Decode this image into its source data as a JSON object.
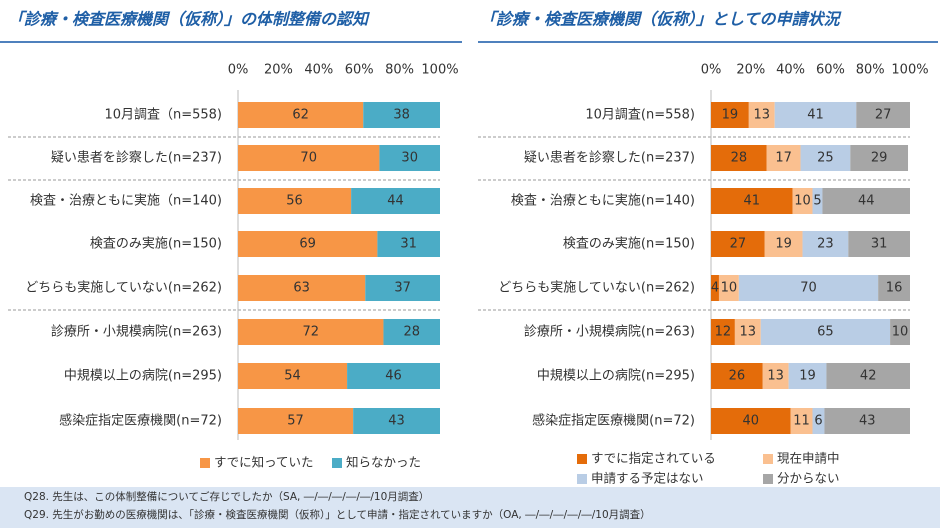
{
  "chart_data": [
    {
      "type": "stacked-bar",
      "title": "「診療・検査医療機関（仮称）」の体制整備の認知",
      "categories": [
        "10月調査（n=558)",
        "疑い患者を診察した(n=237)",
        "検査・治療ともに実施（n=140)",
        "検査のみ実施(n=150)",
        "どちらも実施していない(n=262)",
        "診療所・小規模病院(n=263)",
        "中規模以上の病院(n=295)",
        "感染症指定医療機関(n=72)"
      ],
      "series": [
        {
          "name": "すでに知っていた",
          "color": "#f79646",
          "values": [
            62,
            70,
            56,
            69,
            63,
            72,
            54,
            57
          ]
        },
        {
          "name": "知らなかった",
          "color": "#4bacc6",
          "values": [
            38,
            30,
            44,
            31,
            37,
            28,
            46,
            43
          ]
        }
      ],
      "xlim": [
        0,
        100
      ],
      "xticks": [
        {
          "value": 0,
          "label": "0%"
        },
        {
          "value": 20,
          "label": "20%"
        },
        {
          "value": 40,
          "label": "40%"
        },
        {
          "value": 60,
          "label": "60%"
        },
        {
          "value": 80,
          "label": "80%"
        },
        {
          "value": 100,
          "label": "100%"
        }
      ]
    },
    {
      "type": "stacked-bar",
      "title": "「診療・検査医療機関（仮称）」としての申請状況",
      "categories": [
        "10月調査(n=558)",
        "疑い患者を診察した(n=237)",
        "検査・治療ともに実施(n=140)",
        "検査のみ実施(n=150)",
        "どちらも実施していない(n=262)",
        "診療所・小規模病院(n=263)",
        "中規模以上の病院(n=295)",
        "感染症指定医療機関(n=72)"
      ],
      "series": [
        {
          "name": "すでに指定されている",
          "color": "#e46c0a",
          "values": [
            19,
            28,
            41,
            27,
            4,
            12,
            26,
            40
          ]
        },
        {
          "name": "現在申請中",
          "color": "#fac090",
          "values": [
            13,
            17,
            10,
            19,
            10,
            13,
            13,
            11
          ]
        },
        {
          "name": "申請する予定はない",
          "color": "#b9cde5",
          "values": [
            41,
            25,
            5,
            23,
            70,
            65,
            19,
            6
          ]
        },
        {
          "name": "分からない",
          "color": "#a6a6a6",
          "values": [
            27,
            29,
            44,
            31,
            16,
            10,
            42,
            43
          ]
        }
      ],
      "xlim": [
        0,
        100
      ],
      "xticks": [
        {
          "value": 0,
          "label": "0%"
        },
        {
          "value": 20,
          "label": "20%"
        },
        {
          "value": 40,
          "label": "40%"
        },
        {
          "value": 60,
          "label": "60%"
        },
        {
          "value": 80,
          "label": "80%"
        },
        {
          "value": 100,
          "label": "100%"
        }
      ]
    }
  ],
  "notes": [
    "Q28.  先生は、この体制整備についてご存じでしたか（SA, ―/―/―/―/―/10月調査）",
    "Q29.  先生がお勤めの医療機関は、「診療・検査医療機関（仮称）」として申請・指定されていますか（OA, ―/―/―/―/―/10月調査）"
  ]
}
